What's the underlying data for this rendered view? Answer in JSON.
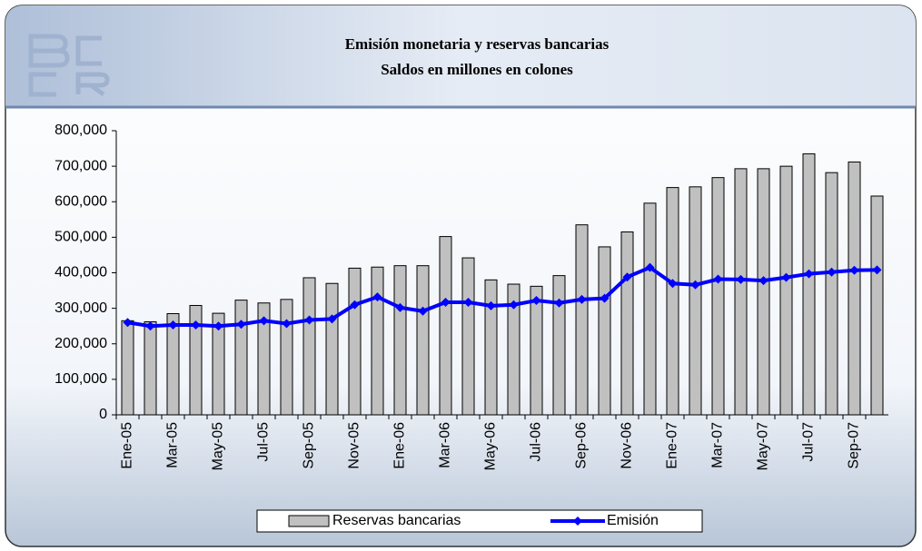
{
  "chart_data": {
    "type": "bar-line",
    "title": "Emisión monetaria y reservas bancarias",
    "subtitle": "Saldos en millones en colones",
    "categories": [
      "Ene-05",
      null,
      "Mar-05",
      null,
      "May-05",
      null,
      "Jul-05",
      null,
      "Sep-05",
      null,
      "Nov-05",
      null,
      "Ene-06",
      null,
      "Mar-06",
      null,
      "May-06",
      null,
      "Jul-06",
      null,
      "Sep-06",
      null,
      "Nov-06",
      null,
      "Ene-07",
      null,
      "Mar-07",
      null,
      "May-07",
      null,
      "Jul-07",
      null,
      "Sep-07",
      null
    ],
    "series": [
      {
        "name": "Reservas bancarias",
        "type": "bar",
        "color": "#c0c0c0",
        "values": [
          265000,
          262000,
          285000,
          308000,
          286000,
          323000,
          315000,
          325000,
          386000,
          370000,
          413000,
          416000,
          420000,
          420000,
          502000,
          442000,
          380000,
          368000,
          362000,
          392000,
          535000,
          473000,
          515000,
          596000,
          640000,
          642000,
          668000,
          693000,
          693000,
          700000,
          735000,
          682000,
          712000,
          616000
        ]
      },
      {
        "name": "Emisión",
        "type": "line",
        "color": "#0000ff",
        "values": [
          260000,
          250000,
          253000,
          253000,
          250000,
          255000,
          265000,
          257000,
          267000,
          270000,
          310000,
          332000,
          302000,
          292000,
          317000,
          317000,
          307000,
          310000,
          322000,
          315000,
          325000,
          328000,
          388000,
          415000,
          370000,
          366000,
          382000,
          381000,
          378000,
          387000,
          397000,
          402000,
          407000,
          408000
        ]
      }
    ],
    "ylim": [
      0,
      800000
    ],
    "yticks": [
      0,
      {
        "value": 100000,
        "label": "100,000"
      },
      {
        "value": 200000,
        "label": "200,000"
      },
      {
        "value": 300000,
        "label": "300,000"
      },
      {
        "value": 400000,
        "label": "400,000"
      },
      {
        "value": 500000,
        "label": "500,000"
      },
      {
        "value": 600000,
        "label": "600,000"
      },
      {
        "value": 700000,
        "label": "700,000"
      },
      {
        "value": 800000,
        "label": "800,000"
      }
    ],
    "legend": "bottom"
  }
}
